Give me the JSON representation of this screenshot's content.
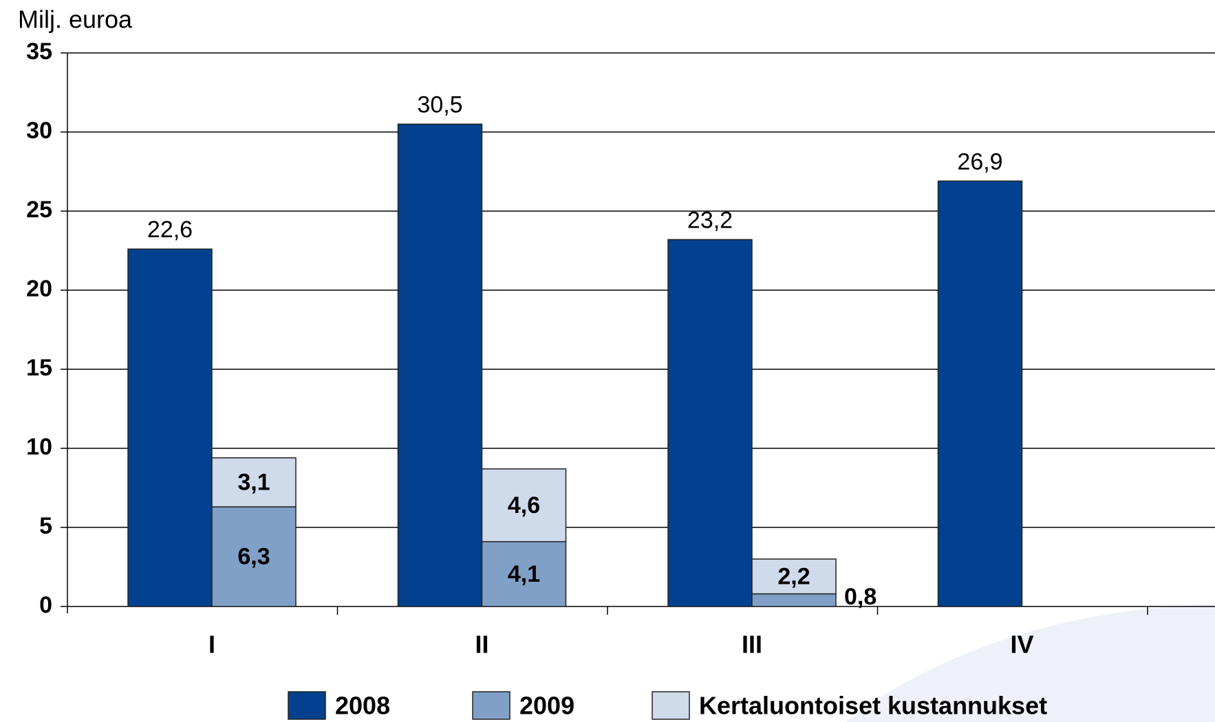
{
  "chart_data": {
    "type": "bar",
    "y_label": "Milj. euroa",
    "categories": [
      "I",
      "II",
      "III",
      "IV"
    ],
    "series": [
      {
        "name": "2008",
        "color": "#03418f",
        "values": [
          22.6,
          30.5,
          23.2,
          26.9
        ],
        "value_labels": [
          "22,6",
          "30,5",
          "23,2",
          "26,9"
        ]
      },
      {
        "name": "2009",
        "color": "#80a0c8",
        "values": [
          6.3,
          4.1,
          0.8,
          null
        ],
        "value_labels": [
          "6,3",
          "4,1",
          "0,8",
          null
        ],
        "stack": "b"
      },
      {
        "name": "Kertaluontoiset kustannukset",
        "color": "#cfdaeb",
        "values": [
          3.1,
          4.6,
          2.2,
          null
        ],
        "value_labels": [
          "3,1",
          "4,6",
          "2,2",
          null
        ],
        "stack": "b"
      }
    ],
    "ylim": [
      0,
      35
    ],
    "yticks": [
      0,
      5,
      10,
      15,
      20,
      25,
      30,
      35
    ],
    "grid": true
  }
}
